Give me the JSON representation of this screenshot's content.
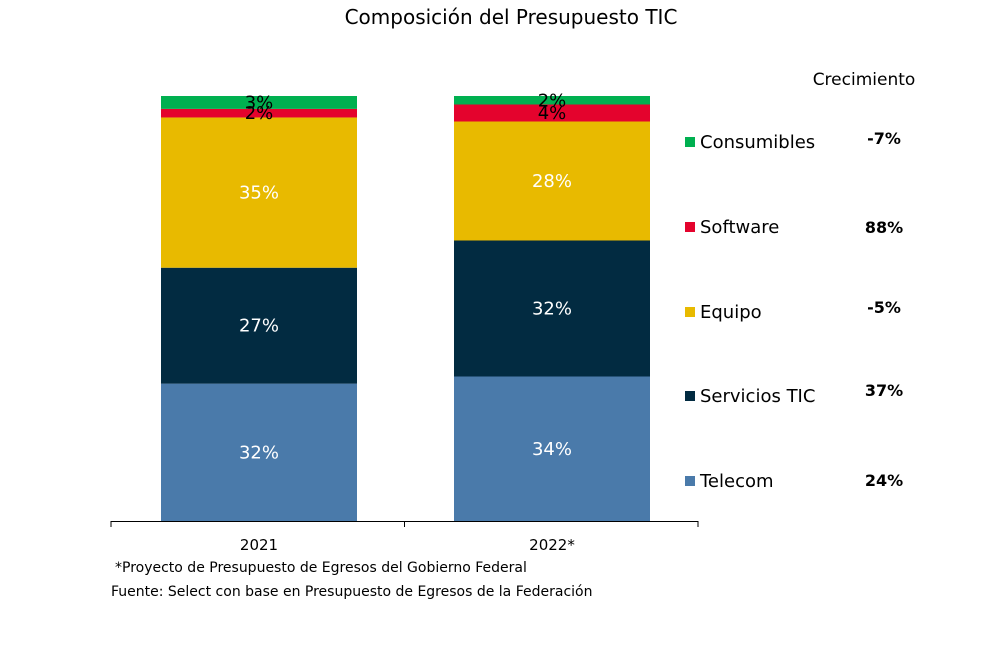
{
  "chart_data": {
    "type": "bar",
    "stacked": true,
    "title": "Composición del Presupuesto TIC",
    "categories": [
      "2021",
      "2022*"
    ],
    "series": [
      {
        "name": "Telecom",
        "values": [
          32,
          34
        ],
        "labels": [
          "32%",
          "34%"
        ],
        "color": "#4a7aaa",
        "label_color": "#ffffff"
      },
      {
        "name": "Servicios TIC",
        "values": [
          27,
          32
        ],
        "labels": [
          "27%",
          "32%"
        ],
        "color": "#022b41",
        "label_color": "#ffffff"
      },
      {
        "name": "Equipo",
        "values": [
          35,
          28
        ],
        "labels": [
          "35%",
          "28%"
        ],
        "color": "#e8ba00",
        "label_color": "#ffffff"
      },
      {
        "name": "Software",
        "values": [
          2,
          4
        ],
        "labels": [
          "2%",
          "4%"
        ],
        "color": "#e4032d",
        "label_color": "#000000"
      },
      {
        "name": "Consumibles",
        "values": [
          3,
          2
        ],
        "labels": [
          "3%",
          "2%"
        ],
        "color": "#00b050",
        "label_color": "#000000"
      }
    ],
    "growth_header": "Crecimiento",
    "growth": [
      {
        "series": "Consumibles",
        "value": "-7%"
      },
      {
        "series": "Software",
        "value": "88%"
      },
      {
        "series": "Equipo",
        "value": "-5%"
      },
      {
        "series": "Servicios TIC",
        "value": "37%"
      },
      {
        "series": "Telecom",
        "value": "24%"
      }
    ],
    "legend_position": "right",
    "ylim": [
      0,
      100
    ],
    "grid": false
  },
  "footnotes": {
    "note": "*Proyecto de Presupuesto de Egresos del Gobierno Federal",
    "source": "Fuente: Select con base en Presupuesto de Egresos de la Federación"
  }
}
